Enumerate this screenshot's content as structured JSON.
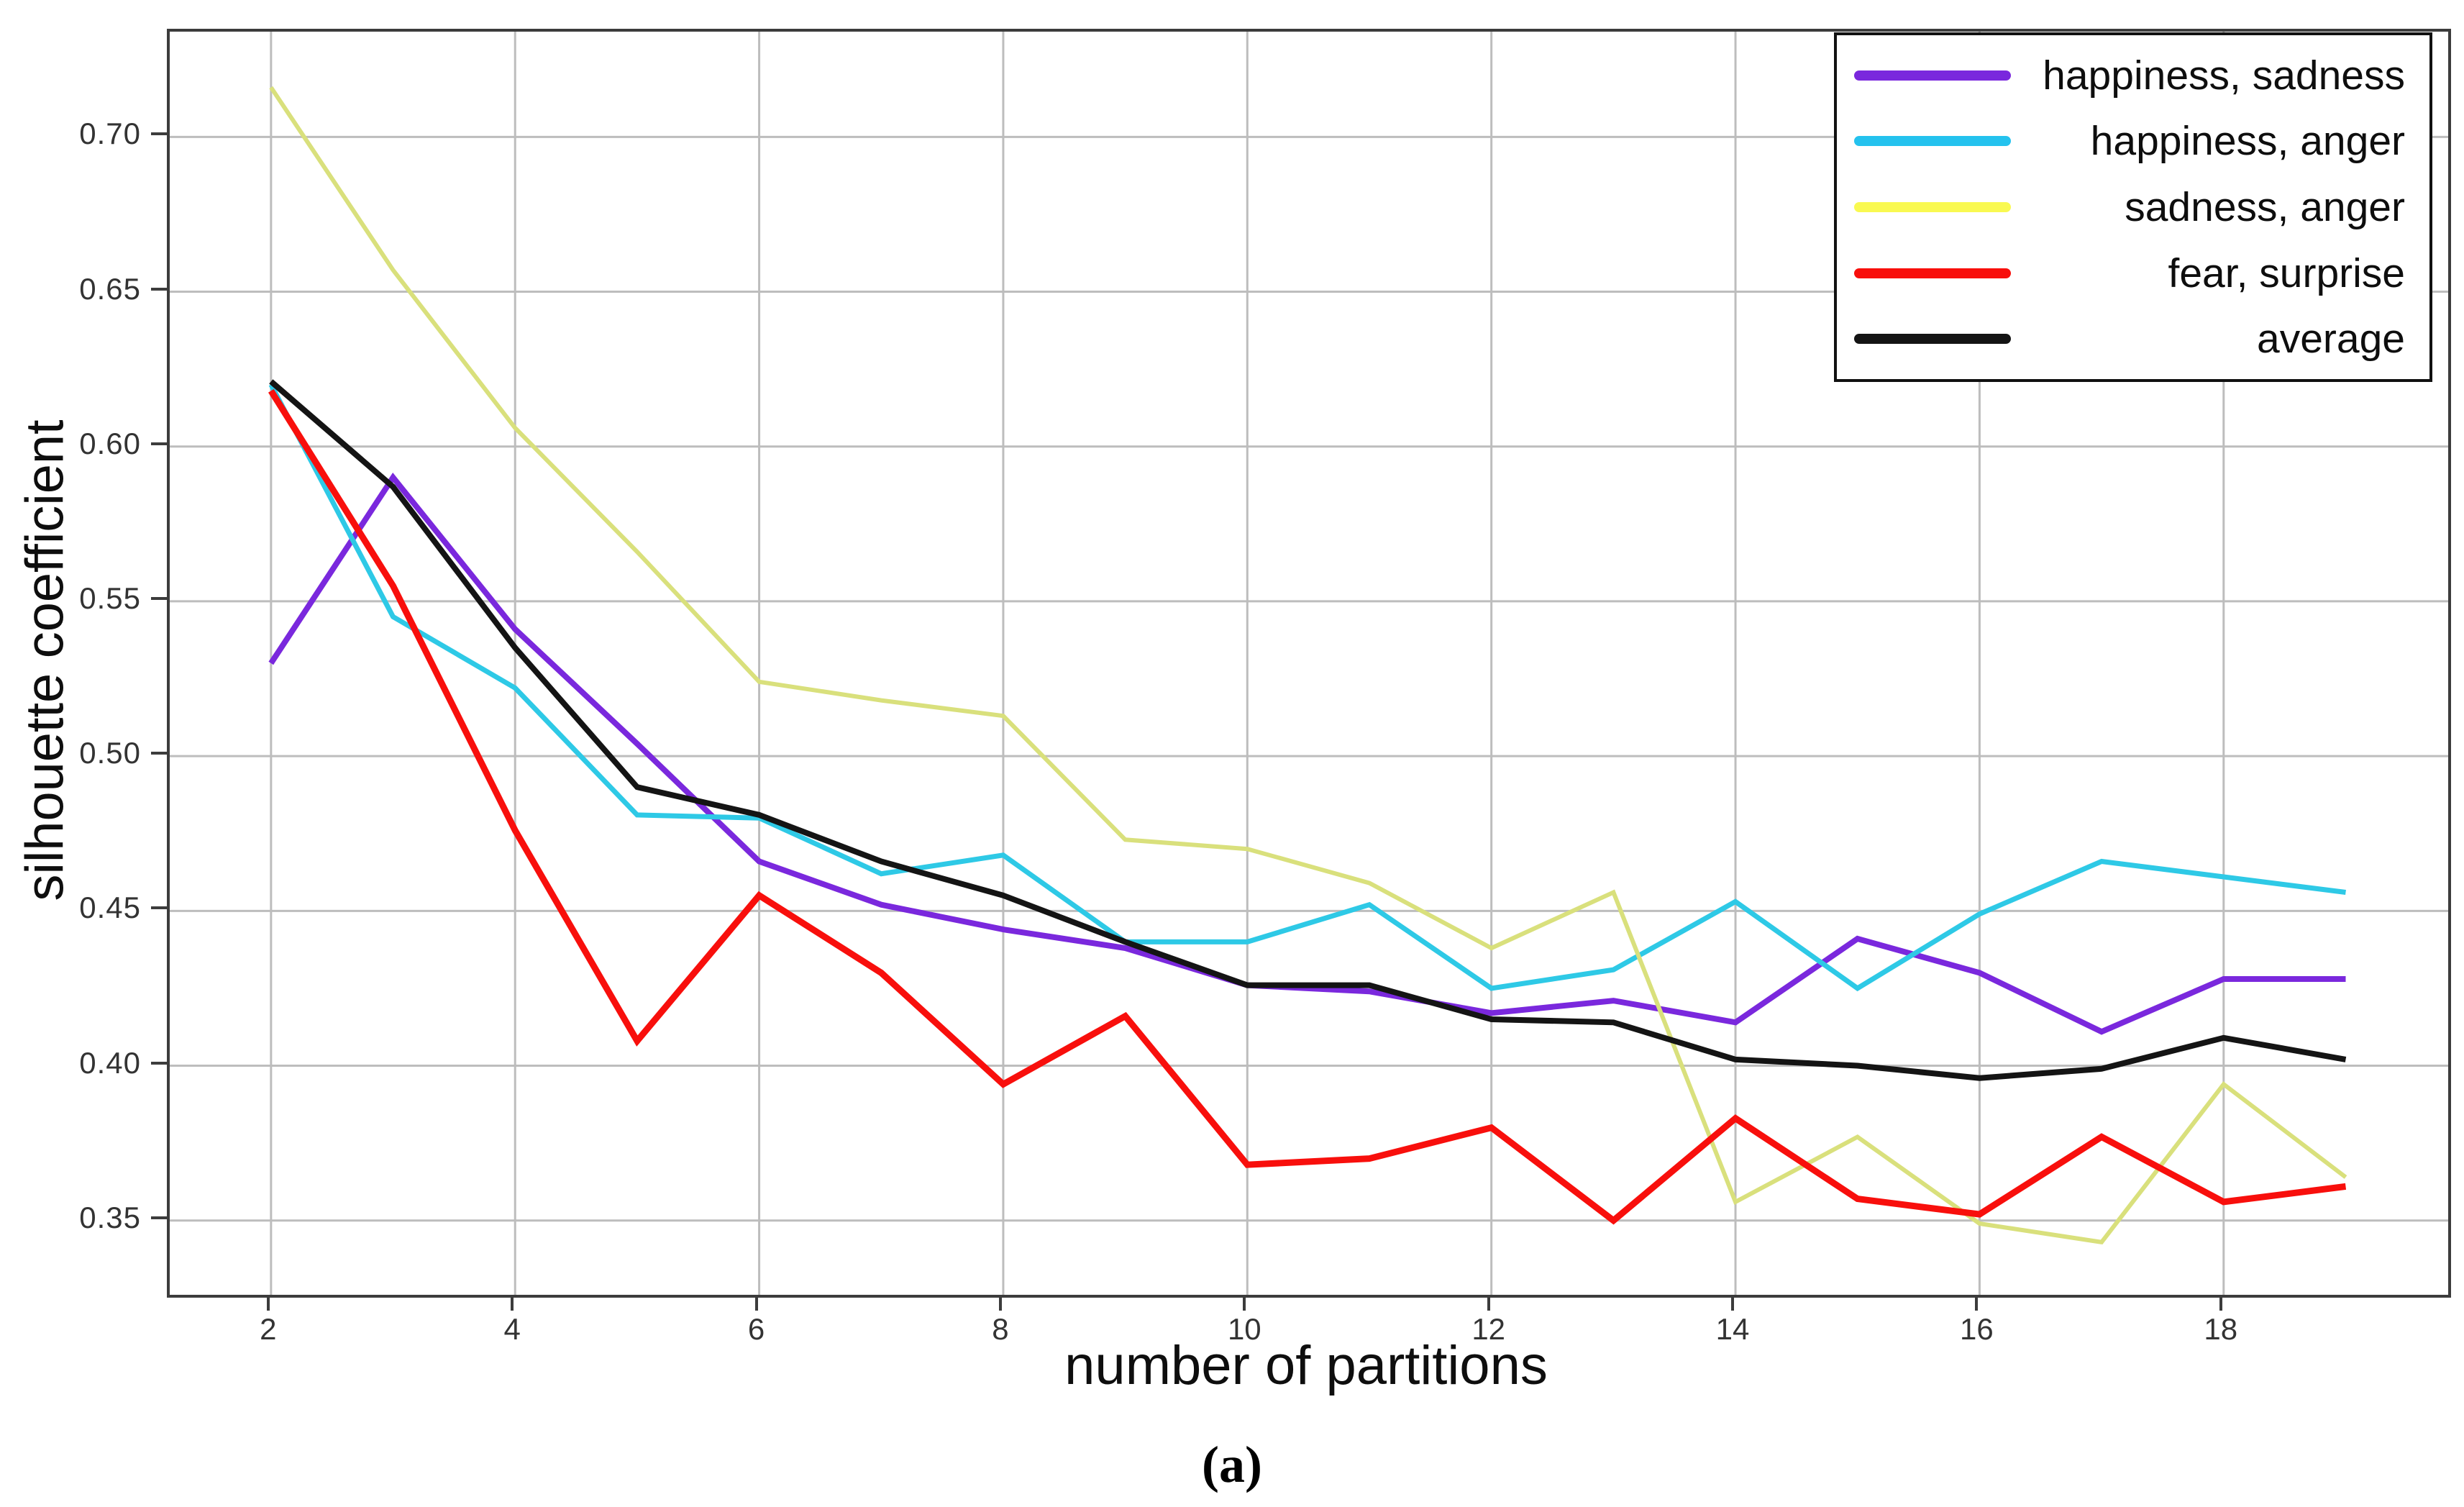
{
  "figure": {
    "caption": "(a)"
  },
  "chart_data": {
    "type": "line",
    "title": "",
    "xlabel": "number of partitions",
    "ylabel": "silhouette coefficient",
    "grid": true,
    "legend_position": "upper right",
    "xlim": [
      1.17,
      19.84
    ],
    "ylim": [
      0.326,
      0.734
    ],
    "x_ticks": [
      2,
      4,
      6,
      8,
      10,
      12,
      14,
      16,
      18
    ],
    "y_ticks": [
      0.35,
      0.4,
      0.45,
      0.5,
      0.55,
      0.6,
      0.65,
      0.7
    ],
    "y_tick_labels": [
      "0.35",
      "0.40",
      "0.45",
      "0.50",
      "0.55",
      "0.60",
      "0.65",
      "0.70"
    ],
    "x": [
      2,
      3,
      4,
      5,
      6,
      7,
      8,
      9,
      10,
      11,
      12,
      13,
      14,
      15,
      16,
      17,
      18,
      19
    ],
    "series": [
      {
        "name": "happiness, sadness",
        "color": "#7a28dd",
        "legend_color": "#7a28dd",
        "line_width": 8,
        "values": [
          0.53,
          0.59,
          0.541,
          0.504,
          0.466,
          0.452,
          0.444,
          0.438,
          0.426,
          0.424,
          0.417,
          0.421,
          0.414,
          0.441,
          0.43,
          0.411,
          0.428,
          0.428
        ]
      },
      {
        "name": "happiness, anger",
        "color": "#2ec9e6",
        "legend_color": "#24c2ee",
        "line_width": 7,
        "values": [
          0.62,
          0.545,
          0.522,
          0.481,
          0.48,
          0.462,
          0.468,
          0.44,
          0.44,
          0.452,
          0.425,
          0.431,
          0.453,
          0.425,
          0.449,
          0.466,
          0.461,
          0.456
        ]
      },
      {
        "name": "sadness, anger",
        "color": "#d9e07c",
        "legend_color": "#f9f951",
        "line_width": 6,
        "values": [
          0.716,
          0.657,
          0.606,
          0.566,
          0.524,
          0.518,
          0.513,
          0.473,
          0.47,
          0.459,
          0.438,
          0.456,
          0.356,
          0.377,
          0.349,
          0.343,
          0.394,
          0.364
        ]
      },
      {
        "name": "fear, surprise",
        "color": "#f80f0c",
        "legend_color": "#f80f0c",
        "line_width": 9,
        "values": [
          0.618,
          0.555,
          0.476,
          0.408,
          0.455,
          0.43,
          0.394,
          0.416,
          0.368,
          0.37,
          0.38,
          0.35,
          0.383,
          0.357,
          0.352,
          0.377,
          0.356,
          0.361
        ]
      },
      {
        "name": "average",
        "color": "#141414",
        "legend_color": "#141414",
        "line_width": 8,
        "values": [
          0.621,
          0.587,
          0.535,
          0.49,
          0.481,
          0.466,
          0.455,
          0.44,
          0.426,
          0.426,
          0.415,
          0.414,
          0.402,
          0.4,
          0.396,
          0.399,
          0.409,
          0.402
        ]
      }
    ],
    "style": {
      "grid_color": "#bdbdbd",
      "spine_color": "#3c3c3c",
      "tick_label_color": "#333333"
    }
  }
}
